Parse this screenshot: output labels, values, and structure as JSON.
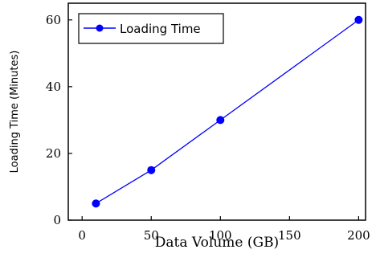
{
  "chart_data": {
    "type": "line",
    "xlabel": "Data Volume (GB)",
    "ylabel": "Loading Time (Minutes)",
    "xlim": [
      -10,
      205
    ],
    "ylim": [
      0,
      65
    ],
    "xticks": [
      0,
      50,
      100,
      150,
      200
    ],
    "yticks": [
      0,
      20,
      40,
      60
    ],
    "grid": false,
    "legend_position": "top-left",
    "series": [
      {
        "name": "Loading  Time",
        "color": "#0000ff",
        "marker": "circle",
        "x": [
          10,
          50,
          100,
          200
        ],
        "y": [
          5,
          15,
          30,
          60
        ]
      }
    ]
  }
}
